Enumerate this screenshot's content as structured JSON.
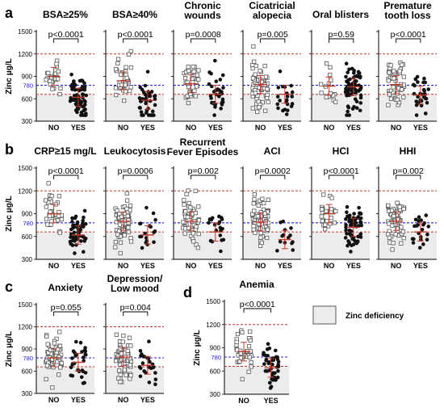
{
  "figure": {
    "legend_label": "Zinc deficiency",
    "colors": {
      "deficiency_shade": "#ececec",
      "normal_limit_line": "#c0392b",
      "reference_line": "#1f1fd0",
      "no_group_marker": "#555555",
      "yes_group_marker": "#111111",
      "median_bar": "#c0392b"
    }
  },
  "chart_data": [
    {
      "panel": "a",
      "type": "scatter",
      "title": "BSA≥25%",
      "ylabel": "Zinc μg/L",
      "pvalue": "p<0.0001",
      "categories": [
        "NO",
        "YES"
      ],
      "ylim": [
        300,
        1500
      ],
      "yticks": [
        300,
        600,
        900,
        1200,
        1500
      ],
      "reference_label": "780",
      "reference_value": 780,
      "normal_limits": [
        660,
        1200
      ],
      "deficiency_below": 660,
      "n": [
        22,
        70
      ],
      "medians": [
        900,
        620
      ]
    },
    {
      "panel": "a",
      "type": "scatter",
      "title": "BSA≥40%",
      "pvalue": "p<0.0001",
      "categories": [
        "NO",
        "YES"
      ],
      "ylim": [
        300,
        1500
      ],
      "normal_limits": [
        660,
        1200
      ],
      "reference_value": 780,
      "deficiency_below": 660,
      "n": [
        35,
        40
      ],
      "medians": [
        840,
        580
      ]
    },
    {
      "panel": "a",
      "type": "scatter",
      "title": "Chronic wounds",
      "pvalue": "p=0.0008",
      "categories": [
        "NO",
        "YES"
      ],
      "ylim": [
        300,
        1500
      ],
      "normal_limits": [
        660,
        1200
      ],
      "reference_value": 780,
      "deficiency_below": 660,
      "n": [
        35,
        35
      ],
      "medians": [
        800,
        660
      ]
    },
    {
      "panel": "a",
      "type": "scatter",
      "title": "Cicatricial alopecia",
      "pvalue": "p=0.005",
      "categories": [
        "NO",
        "YES"
      ],
      "ylim": [
        300,
        1500
      ],
      "normal_limits": [
        660,
        1200
      ],
      "reference_value": 780,
      "deficiency_below": 660,
      "n": [
        65,
        22
      ],
      "medians": [
        790,
        660
      ]
    },
    {
      "panel": "a",
      "type": "scatter",
      "title": "Oral blisters",
      "pvalue": "p=0.59",
      "categories": [
        "NO",
        "YES"
      ],
      "ylim": [
        300,
        1500
      ],
      "normal_limits": [
        660,
        1200
      ],
      "reference_value": 780,
      "deficiency_below": 660,
      "n": [
        16,
        70
      ],
      "medians": [
        770,
        760
      ]
    },
    {
      "panel": "a",
      "type": "scatter",
      "title": "Premature tooth loss",
      "pvalue": "p<0.0001",
      "categories": [
        "NO",
        "YES"
      ],
      "ylim": [
        300,
        1500
      ],
      "normal_limits": [
        660,
        1200
      ],
      "reference_value": 780,
      "deficiency_below": 660,
      "n": [
        50,
        30
      ],
      "medians": [
        790,
        650
      ]
    },
    {
      "panel": "b",
      "type": "scatter",
      "title": "CRP≥15 mg/L",
      "ylabel": "Zinc μg/L",
      "pvalue": "p<0.0001",
      "categories": [
        "NO",
        "YES"
      ],
      "ylim": [
        300,
        1500
      ],
      "yticks": [
        300,
        600,
        900,
        1200,
        1500
      ],
      "reference_label": "780",
      "reference_value": 780,
      "normal_limits": [
        660,
        1200
      ],
      "deficiency_below": 660,
      "n": [
        30,
        55
      ],
      "medians": [
        900,
        620
      ]
    },
    {
      "panel": "b",
      "type": "scatter",
      "title": "Leukocytosis",
      "pvalue": "p=0.0006",
      "categories": [
        "NO",
        "YES"
      ],
      "ylim": [
        300,
        1500
      ],
      "normal_limits": [
        660,
        1200
      ],
      "reference_value": 780,
      "deficiency_below": 660,
      "n": [
        65,
        18
      ],
      "medians": [
        800,
        620
      ]
    },
    {
      "panel": "b",
      "type": "scatter",
      "title": "Recurrent Fever Episodes",
      "pvalue": "p=0.002",
      "categories": [
        "NO",
        "YES"
      ],
      "ylim": [
        300,
        1500
      ],
      "normal_limits": [
        660,
        1200
      ],
      "reference_value": 780,
      "deficiency_below": 660,
      "n": [
        60,
        20
      ],
      "medians": [
        800,
        660
      ]
    },
    {
      "panel": "b",
      "type": "scatter",
      "title": "ACI",
      "pvalue": "p=0.0002",
      "categories": [
        "NO",
        "YES"
      ],
      "ylim": [
        300,
        1500
      ],
      "normal_limits": [
        660,
        1200
      ],
      "reference_value": 780,
      "deficiency_below": 660,
      "n": [
        70,
        14
      ],
      "medians": [
        790,
        560
      ]
    },
    {
      "panel": "b",
      "type": "scatter",
      "title": "HCI",
      "pvalue": "p<0.0001",
      "categories": [
        "NO",
        "YES"
      ],
      "ylim": [
        300,
        1500
      ],
      "normal_limits": [
        660,
        1200
      ],
      "reference_value": 780,
      "deficiency_below": 660,
      "n": [
        25,
        60
      ],
      "medians": [
        900,
        720
      ]
    },
    {
      "panel": "b",
      "type": "scatter",
      "title": "HHI",
      "pvalue": "p=0.002",
      "categories": [
        "NO",
        "YES"
      ],
      "ylim": [
        300,
        1500
      ],
      "normal_limits": [
        660,
        1200
      ],
      "reference_value": 780,
      "deficiency_below": 660,
      "n": [
        60,
        22
      ],
      "medians": [
        800,
        660
      ]
    },
    {
      "panel": "c",
      "type": "scatter",
      "title": "Anxiety",
      "ylabel": "Zinc μg/L",
      "pvalue": "p=0.055",
      "categories": [
        "NO",
        "YES"
      ],
      "ylim": [
        300,
        1500
      ],
      "yticks": [
        300,
        600,
        900,
        1200,
        1500
      ],
      "reference_label": "780",
      "reference_value": 780,
      "normal_limits": [
        660,
        1200
      ],
      "deficiency_below": 660,
      "n": [
        55,
        30
      ],
      "medians": [
        780,
        720
      ]
    },
    {
      "panel": "c",
      "type": "scatter",
      "title": "Depression/ Low mood",
      "pvalue": "p=0.004",
      "categories": [
        "NO",
        "YES"
      ],
      "ylim": [
        300,
        1500
      ],
      "normal_limits": [
        660,
        1200
      ],
      "reference_value": 780,
      "deficiency_below": 660,
      "n": [
        60,
        25
      ],
      "medians": [
        790,
        680
      ]
    },
    {
      "panel": "d",
      "type": "scatter",
      "title": "Anemia",
      "ylabel": "Zinc μg/L",
      "pvalue": "p<0.0001",
      "categories": [
        "NO",
        "YES"
      ],
      "ylim": [
        300,
        1500
      ],
      "yticks": [
        300,
        600,
        900,
        1200,
        1500
      ],
      "reference_label": "780",
      "reference_value": 780,
      "normal_limits": [
        660,
        1200
      ],
      "deficiency_below": 660,
      "n": [
        35,
        45
      ],
      "medians": [
        850,
        640
      ]
    }
  ]
}
